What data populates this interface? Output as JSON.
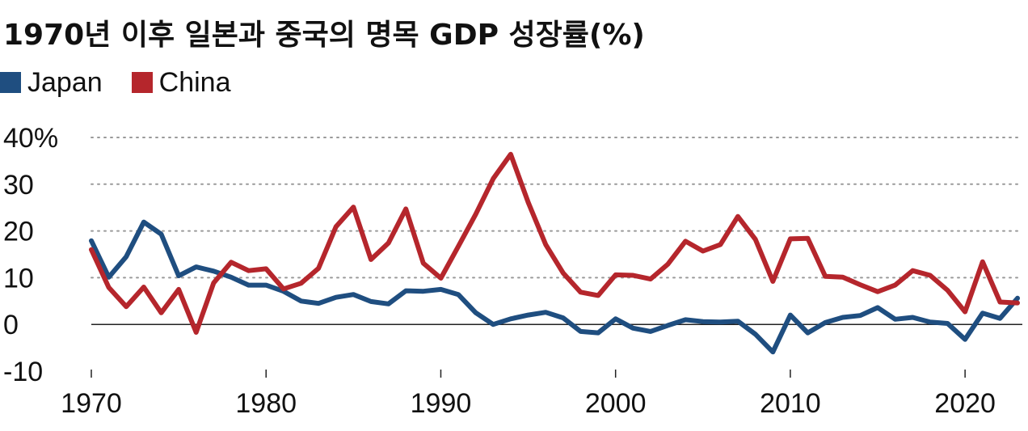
{
  "title": "1970년 이후 일본과 중국의 명목 GDP 성장률(%)",
  "chart_data": {
    "type": "line",
    "title": "1970년 이후 일본과 중국의 명목 GDP 성장률(%)",
    "xlabel": "",
    "ylabel": "",
    "xlim": [
      1970,
      2023
    ],
    "ylim": [
      -10,
      40
    ],
    "y_ticks": [
      40,
      30,
      20,
      10,
      0,
      -10
    ],
    "y_tick_labels": [
      "40%",
      "30",
      "20",
      "10",
      "0",
      "-10"
    ],
    "x_ticks": [
      1970,
      1980,
      1990,
      2000,
      2010,
      2020
    ],
    "x_tick_labels": [
      "1970",
      "1980",
      "1990",
      "2000",
      "2010",
      "2020"
    ],
    "grid": "horizontal dotted",
    "legend_position": "top-left",
    "x": [
      1970,
      1971,
      1972,
      1973,
      1974,
      1975,
      1976,
      1977,
      1978,
      1979,
      1980,
      1981,
      1982,
      1983,
      1984,
      1985,
      1986,
      1987,
      1988,
      1989,
      1990,
      1991,
      1992,
      1993,
      1994,
      1995,
      1996,
      1997,
      1998,
      1999,
      2000,
      2001,
      2002,
      2003,
      2004,
      2005,
      2006,
      2007,
      2008,
      2009,
      2010,
      2011,
      2012,
      2013,
      2014,
      2015,
      2016,
      2017,
      2018,
      2019,
      2020,
      2021,
      2022,
      2023
    ],
    "series": [
      {
        "name": "Japan",
        "color": "#1f4e80",
        "values": [
          17.9,
          10.1,
          14.5,
          21.9,
          19.3,
          10.4,
          12.3,
          11.4,
          10.1,
          8.4,
          8.4,
          7.1,
          5.0,
          4.5,
          5.8,
          6.4,
          4.9,
          4.4,
          7.2,
          7.1,
          7.5,
          6.4,
          2.5,
          0.0,
          1.2,
          2.0,
          2.6,
          1.4,
          -1.5,
          -1.8,
          1.2,
          -0.8,
          -1.5,
          -0.2,
          1.0,
          0.6,
          0.5,
          0.7,
          -2.1,
          -5.9,
          2.0,
          -1.8,
          0.4,
          1.5,
          1.9,
          3.6,
          1.1,
          1.5,
          0.5,
          0.2,
          -3.2,
          2.4,
          1.3,
          5.6
        ]
      },
      {
        "name": "China",
        "color": "#b5262c",
        "values": [
          16.0,
          7.9,
          3.8,
          8.0,
          2.5,
          7.5,
          -1.7,
          8.9,
          13.3,
          11.5,
          11.9,
          7.6,
          8.8,
          12.0,
          20.9,
          25.1,
          13.9,
          17.4,
          24.7,
          13.1,
          9.9,
          16.7,
          23.6,
          31.2,
          36.4,
          26.1,
          17.1,
          11.0,
          6.9,
          6.2,
          10.6,
          10.5,
          9.7,
          12.9,
          17.8,
          15.7,
          17.1,
          23.1,
          18.2,
          9.2,
          18.3,
          18.4,
          10.3,
          10.1,
          8.5,
          7.0,
          8.4,
          11.5,
          10.5,
          7.3,
          2.7,
          13.4,
          4.8,
          4.6
        ]
      }
    ]
  },
  "legend": [
    {
      "label": "Japan",
      "color": "#1f4e80"
    },
    {
      "label": "China",
      "color": "#b5262c"
    }
  ]
}
